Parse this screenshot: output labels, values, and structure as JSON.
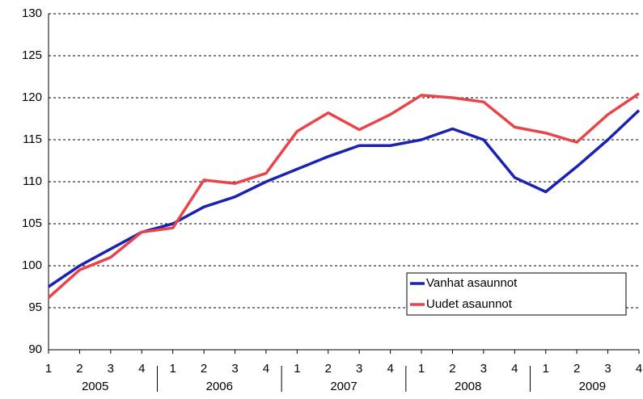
{
  "chart_data": {
    "type": "line",
    "categories": [
      "1",
      "2",
      "3",
      "4",
      "1",
      "2",
      "3",
      "4",
      "1",
      "2",
      "3",
      "4",
      "1",
      "2",
      "3",
      "4",
      "1",
      "2",
      "3",
      "4"
    ],
    "years": [
      "2005",
      "2006",
      "2007",
      "2008",
      "2009"
    ],
    "series": [
      {
        "name": "Vanhat asaunnot",
        "color": "#1c22b0",
        "values": [
          97.5,
          100,
          102,
          104,
          105,
          107,
          108.2,
          110,
          111.5,
          113,
          114.3,
          114.3,
          115,
          116.3,
          115,
          110.5,
          108.8,
          111.8,
          115,
          118.5
        ]
      },
      {
        "name": "Uudet asaunnot",
        "color": "#e8454a",
        "values": [
          96.2,
          99.5,
          101,
          104,
          104.5,
          110.2,
          109.8,
          111,
          116,
          118.2,
          116.2,
          118,
          120.3,
          120,
          119.5,
          116.5,
          115.8,
          114.7,
          118,
          120.5
        ]
      }
    ],
    "ylim": [
      90,
      130
    ],
    "yticks": [
      90,
      95,
      100,
      105,
      110,
      115,
      120,
      125,
      130
    ],
    "grid": true,
    "legend": "lower right"
  }
}
